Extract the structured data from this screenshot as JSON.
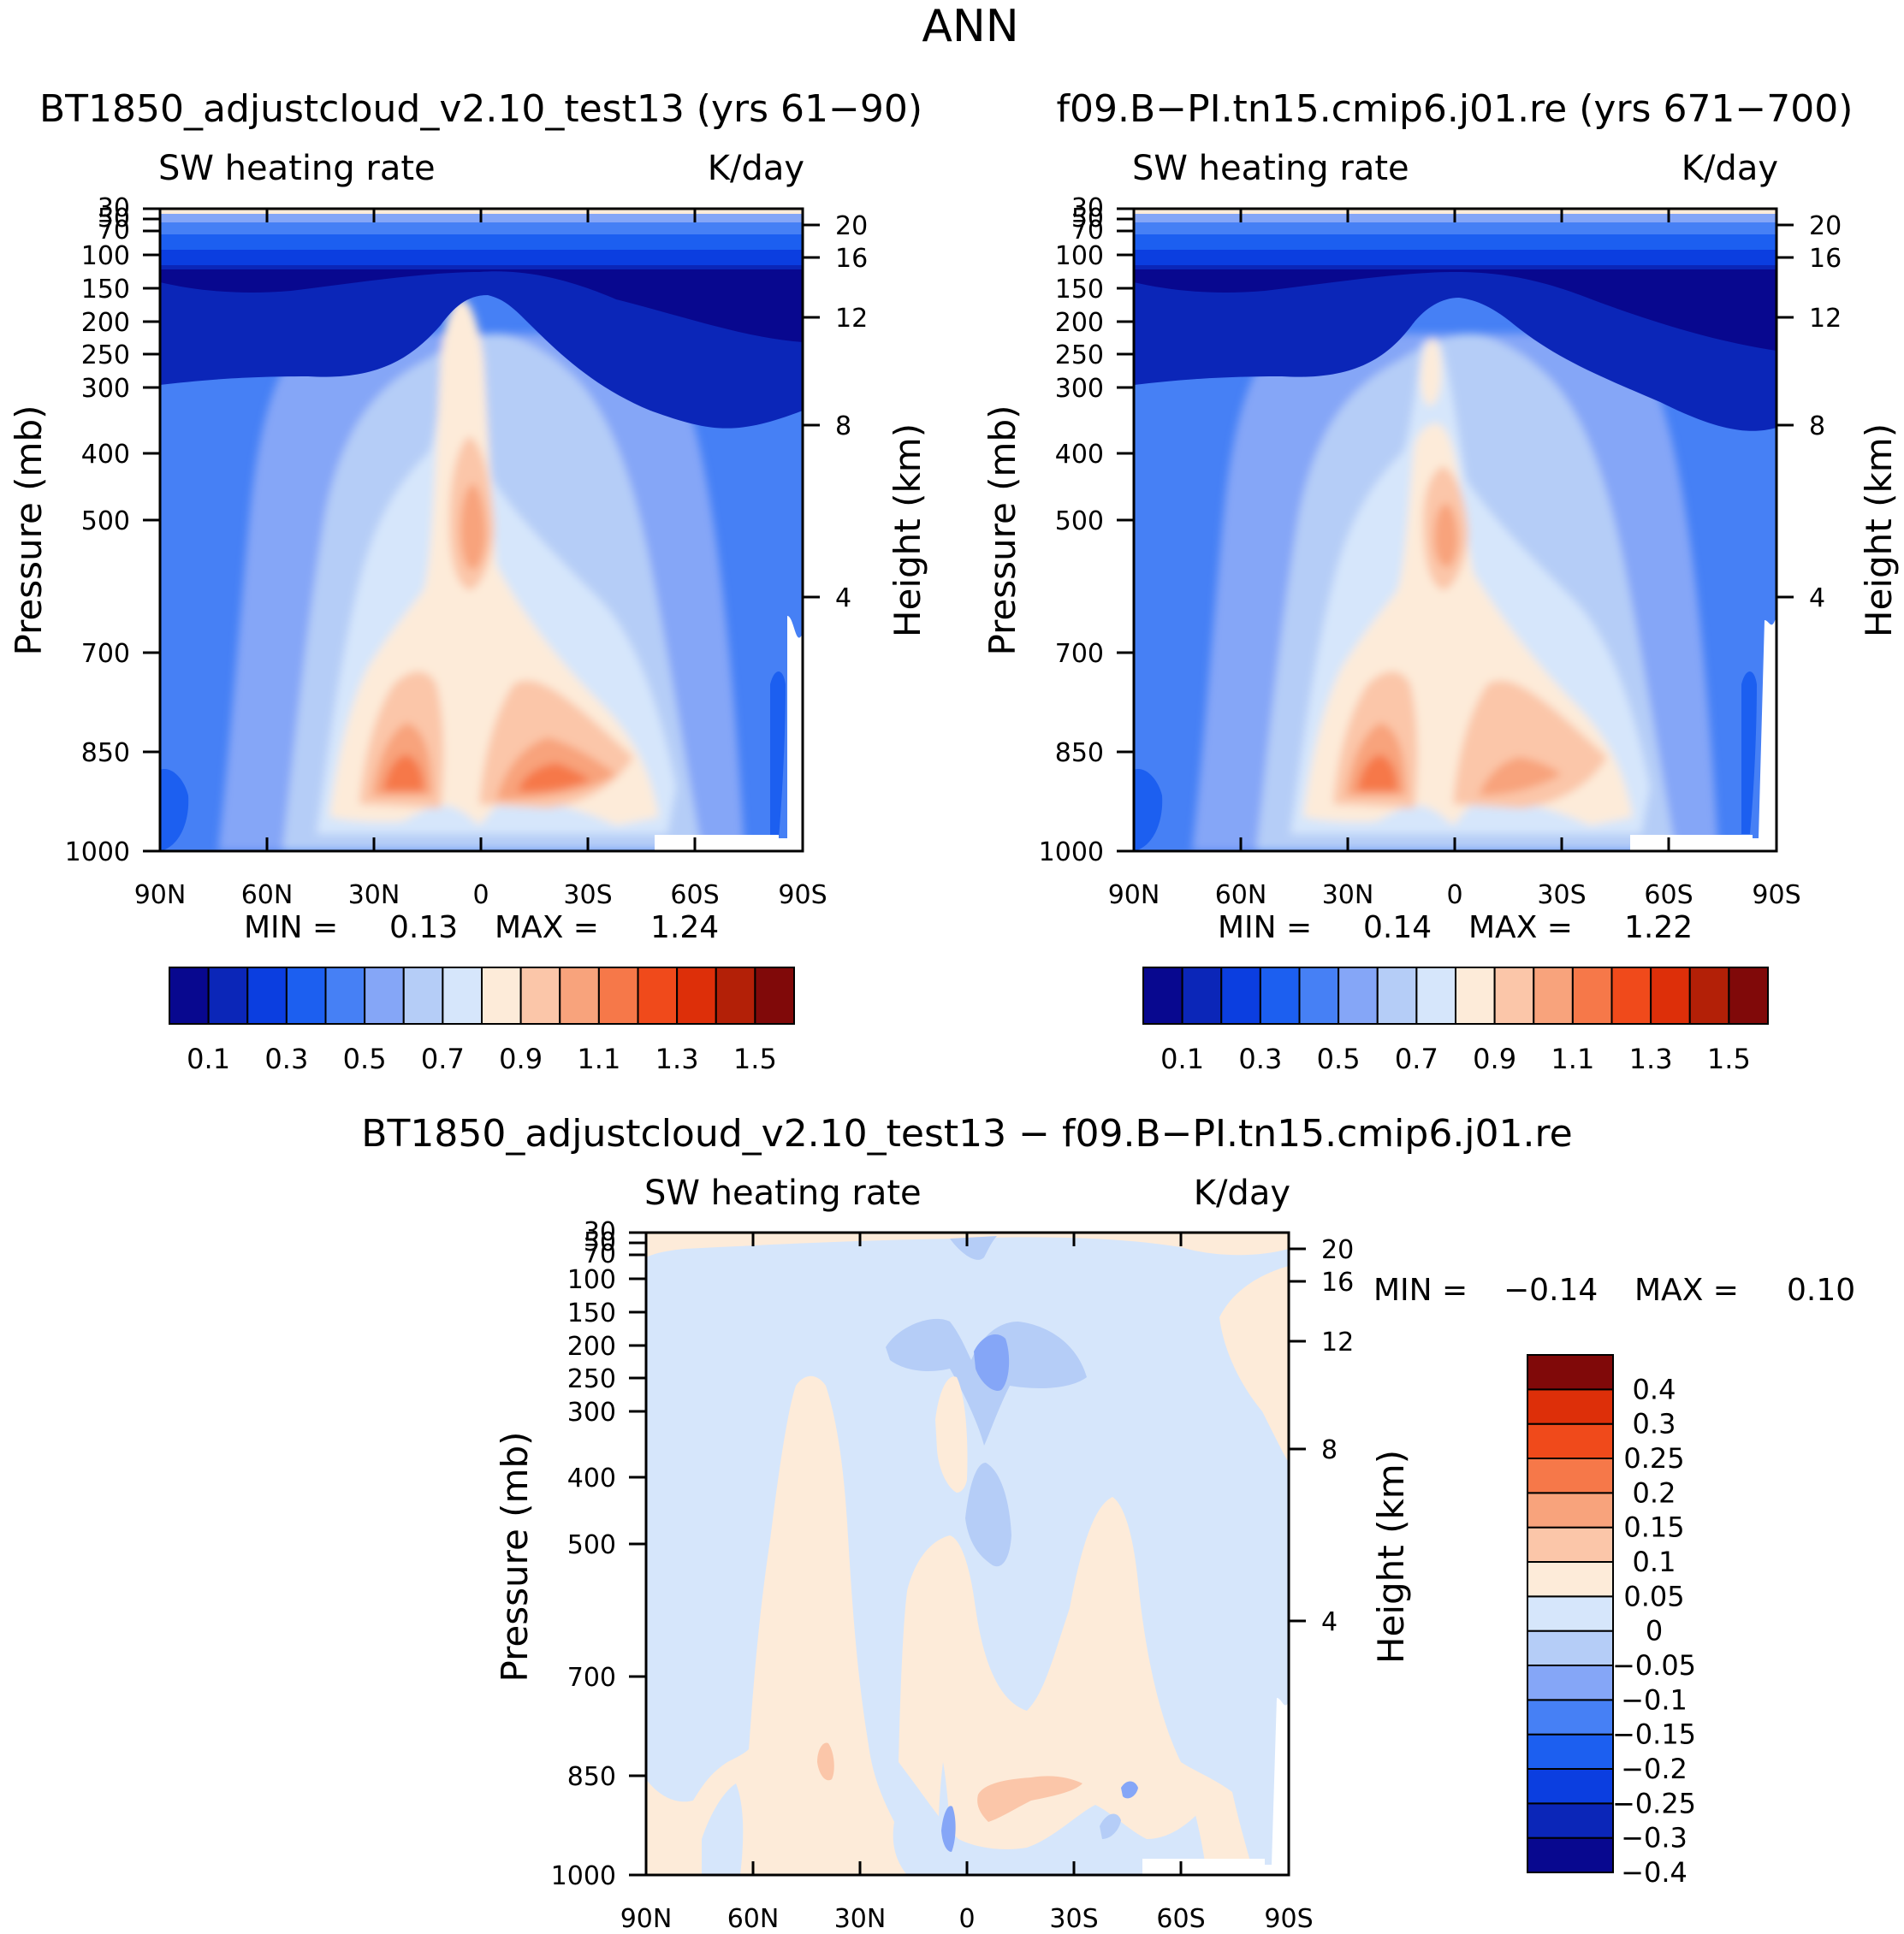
{
  "figure_title": "ANN",
  "colors": {
    "abs_levels": [
      "#08088f",
      "#0b26b8",
      "#0b3ee0",
      "#1c5ff0",
      "#4680f5",
      "#85a6f7",
      "#b5cdf7",
      "#d6e6fb",
      "#fdebd9",
      "#fbc6a9",
      "#f8a37c",
      "#f67849",
      "#f04a1b",
      "#dd2f09",
      "#b32007",
      "#800909"
    ],
    "diff_levels": [
      "#08088f",
      "#0b26b8",
      "#0b3ee0",
      "#1c5ff0",
      "#4680f5",
      "#85a6f7",
      "#b5cdf7",
      "#d6e6fb",
      "#fdebd9",
      "#fbc6a9",
      "#f8a37c",
      "#f67849",
      "#f04a1b",
      "#dd2f09",
      "#800909"
    ]
  },
  "chart_data": [
    {
      "id": "panel-test13",
      "type": "contour",
      "title": "BT1850_adjustcloud_v2.10_test13 (yrs 61-90)",
      "title_glyphs": "BT1850_adjustcloud_v2.10_test13 (yrs 61−90)",
      "field": "SW heating rate",
      "units": "K/day",
      "xlabel": "",
      "ylabel": "Pressure (mb)",
      "y2label": "Height (km)",
      "x_ticks": [
        "90N",
        "60N",
        "30N",
        "0",
        "30S",
        "60S",
        "90S"
      ],
      "x_range": [
        90,
        -90
      ],
      "y_ticks": [
        30,
        50,
        70,
        100,
        150,
        200,
        250,
        300,
        400,
        500,
        700,
        850,
        1000
      ],
      "y2_ticks": [
        20,
        16,
        12,
        8,
        4
      ],
      "min": 0.13,
      "max": 1.24,
      "stats": {
        "min_label": "MIN =",
        "min_value": "0.13",
        "max_label": "MAX =",
        "max_value": "1.24"
      },
      "colorbar_labels": [
        "0.1",
        "0.3",
        "0.5",
        "0.7",
        "0.9",
        "1.1",
        "1.3",
        "1.5"
      ],
      "colorbar_levels": [
        0.1,
        0.2,
        0.3,
        0.4,
        0.5,
        0.6,
        0.7,
        0.8,
        0.9,
        1.0,
        1.1,
        1.2,
        1.3,
        1.4,
        1.5
      ],
      "peaks": [
        {
          "lat": 20,
          "p": 900,
          "value": 1.24
        },
        {
          "lat": -15,
          "p": 890,
          "value": 1.15
        },
        {
          "lat": 2,
          "p": 540,
          "value": 1.0
        }
      ]
    },
    {
      "id": "panel-control",
      "type": "contour",
      "title": "f09.B-PI.tn15.cmip6.j01.re (yrs 671-700)",
      "title_glyphs": "f09.B−PI.tn15.cmip6.j01.re (yrs 671−700)",
      "field": "SW heating rate",
      "units": "K/day",
      "xlabel": "",
      "ylabel": "Pressure (mb)",
      "y2label": "Height (km)",
      "x_ticks": [
        "90N",
        "60N",
        "30N",
        "0",
        "30S",
        "60S",
        "90S"
      ],
      "x_range": [
        90,
        -90
      ],
      "y_ticks": [
        30,
        50,
        70,
        100,
        150,
        200,
        250,
        300,
        400,
        500,
        700,
        850,
        1000
      ],
      "y2_ticks": [
        20,
        16,
        12,
        8,
        4
      ],
      "min": 0.14,
      "max": 1.22,
      "stats": {
        "min_label": "MIN =",
        "min_value": "0.14",
        "max_label": "MAX =",
        "max_value": "1.22"
      },
      "colorbar_labels": [
        "0.1",
        "0.3",
        "0.5",
        "0.7",
        "0.9",
        "1.1",
        "1.3",
        "1.5"
      ],
      "colorbar_levels": [
        0.1,
        0.2,
        0.3,
        0.4,
        0.5,
        0.6,
        0.7,
        0.8,
        0.9,
        1.0,
        1.1,
        1.2,
        1.3,
        1.4,
        1.5
      ],
      "peaks": [
        {
          "lat": 20,
          "p": 900,
          "value": 1.22
        },
        {
          "lat": -15,
          "p": 890,
          "value": 1.1
        },
        {
          "lat": 2,
          "p": 540,
          "value": 0.98
        }
      ]
    },
    {
      "id": "panel-diff",
      "type": "contour",
      "title": "BT1850_adjustcloud_v2.10_test13 - f09.B-PI.tn15.cmip6.j01.re",
      "title_glyphs": "BT1850_adjustcloud_v2.10_test13 − f09.B−PI.tn15.cmip6.j01.re",
      "field": "SW heating rate",
      "units": "K/day",
      "xlabel": "",
      "ylabel": "Pressure (mb)",
      "y2label": "Height (km)",
      "x_ticks": [
        "90N",
        "60N",
        "30N",
        "0",
        "30S",
        "60S",
        "90S"
      ],
      "x_range": [
        90,
        -90
      ],
      "y_ticks": [
        30,
        50,
        70,
        100,
        150,
        200,
        250,
        300,
        400,
        500,
        700,
        850,
        1000
      ],
      "y2_ticks": [
        20,
        16,
        12,
        8,
        4
      ],
      "min": -0.14,
      "max": 0.1,
      "stats": {
        "min_label": "MIN =",
        "min_value": "−0.14",
        "max_label": "MAX =",
        "max_value": "0.10"
      },
      "colorbar_labels": [
        "0.4",
        "0.3",
        "0.25",
        "0.2",
        "0.15",
        "0.1",
        "0.05",
        "0",
        "−0.05",
        "−0.1",
        "−0.15",
        "−0.2",
        "−0.25",
        "−0.3",
        "−0.4"
      ],
      "colorbar_levels": [
        -0.4,
        -0.3,
        -0.25,
        -0.2,
        -0.15,
        -0.1,
        -0.05,
        0,
        0.05,
        0.1,
        0.15,
        0.2,
        0.25,
        0.3,
        0.4
      ]
    }
  ]
}
